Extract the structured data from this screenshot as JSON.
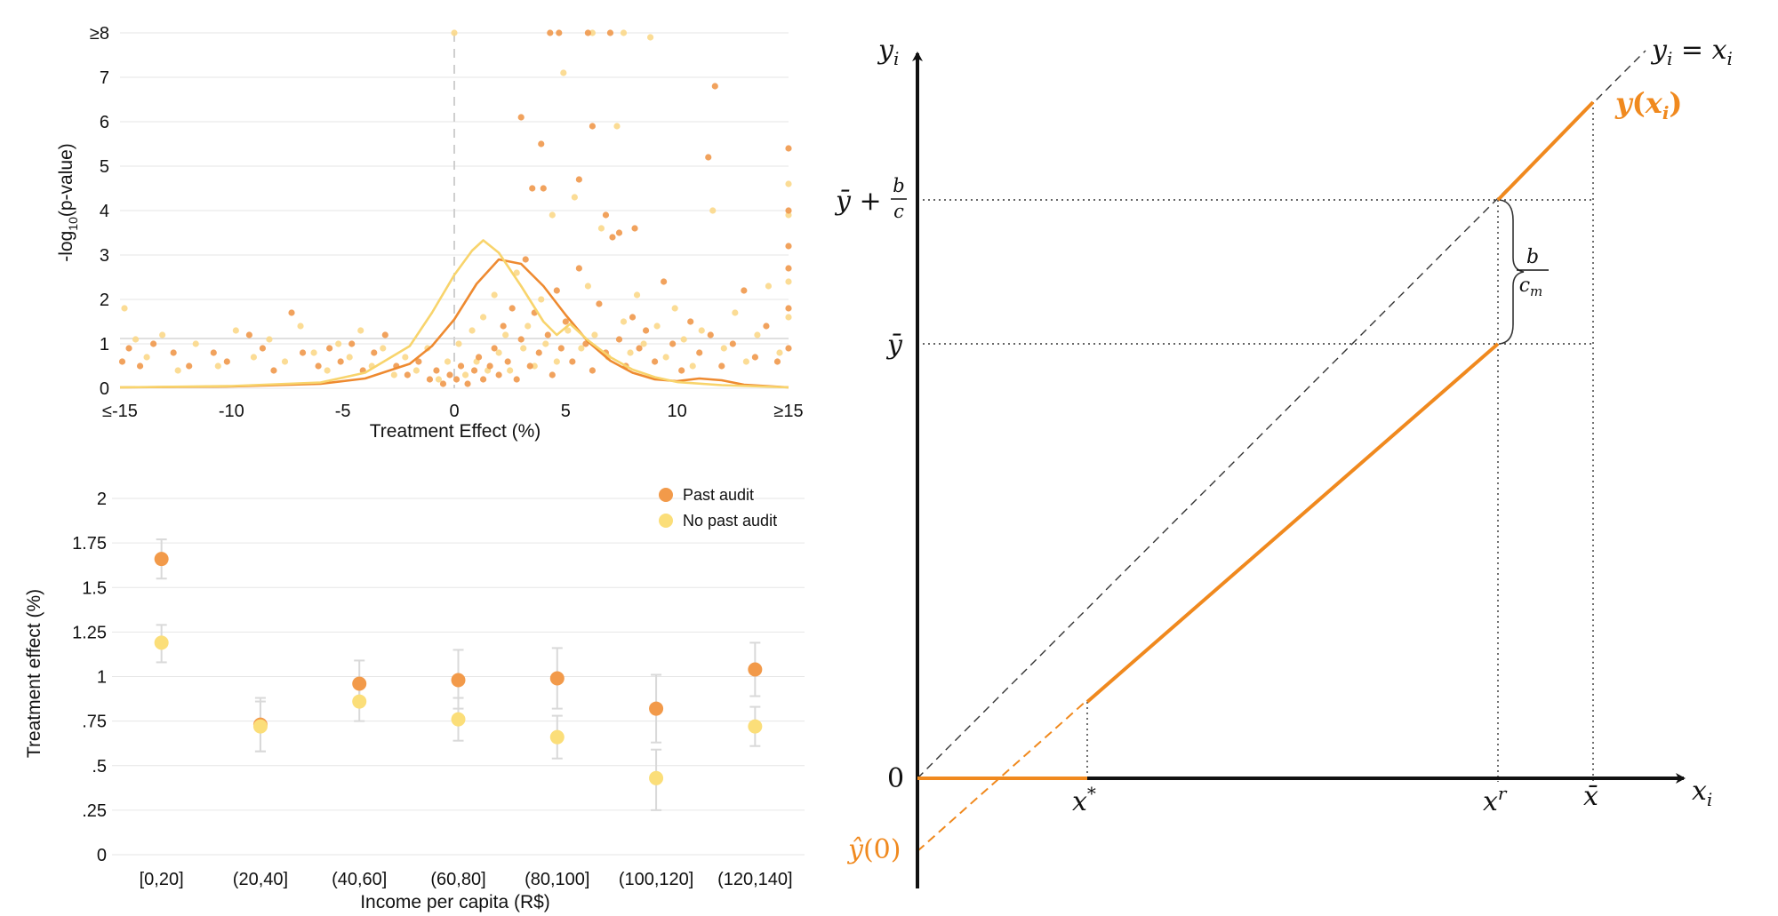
{
  "chart_data": [
    {
      "type": "scatter",
      "title": "",
      "xlabel": "Treatment Effect (%)",
      "ylabel": "-log",
      "ylabel_sub": "10",
      "ylabel_tail": "(p-value)",
      "xlim": [
        -15,
        15
      ],
      "ylim": [
        0,
        8
      ],
      "x_ticks": [
        -15,
        -10,
        -5,
        0,
        5,
        10,
        15
      ],
      "x_tick_labels": [
        "≤-15",
        "-10",
        "-5",
        "0",
        "5",
        "10",
        "≥15"
      ],
      "y_ticks": [
        0,
        1,
        2,
        3,
        4,
        5,
        6,
        7,
        8
      ],
      "y_tick_labels": [
        "0",
        "1",
        "2",
        "3",
        "4",
        "5",
        "6",
        "7",
        "≥8"
      ],
      "grid": true,
      "reference_lines": {
        "vertical_x": 0,
        "horizontal_y": 1.12
      },
      "colors": {
        "orange": "#f0984b",
        "yellow": "#fbd88a"
      },
      "series": [
        {
          "color": "orange",
          "points": [
            [
              -14.9,
              0.6
            ],
            [
              -14.6,
              0.9
            ],
            [
              -14.1,
              0.5
            ],
            [
              -13.5,
              1.0
            ],
            [
              -12.6,
              0.8
            ],
            [
              -11.9,
              0.5
            ],
            [
              -10.8,
              0.8
            ],
            [
              -10.2,
              0.6
            ],
            [
              -9.2,
              1.2
            ],
            [
              -8.6,
              0.9
            ],
            [
              -8.1,
              0.4
            ],
            [
              -7.3,
              1.7
            ],
            [
              -6.8,
              0.8
            ],
            [
              -6.1,
              0.5
            ],
            [
              -5.6,
              0.9
            ],
            [
              -5.1,
              0.6
            ],
            [
              -4.6,
              1.0
            ],
            [
              -4.1,
              0.4
            ],
            [
              -3.6,
              0.8
            ],
            [
              -3.1,
              1.2
            ],
            [
              -2.6,
              0.5
            ],
            [
              -2.1,
              0.3
            ],
            [
              -1.6,
              0.6
            ],
            [
              -1.1,
              0.2
            ],
            [
              -0.8,
              0.4
            ],
            [
              -0.5,
              0.1
            ],
            [
              -0.2,
              0.3
            ],
            [
              0.1,
              0.2
            ],
            [
              0.3,
              0.5
            ],
            [
              0.6,
              0.1
            ],
            [
              0.9,
              0.4
            ],
            [
              1.1,
              0.7
            ],
            [
              1.3,
              0.2
            ],
            [
              1.6,
              0.5
            ],
            [
              1.8,
              0.9
            ],
            [
              2.0,
              0.3
            ],
            [
              2.2,
              1.4
            ],
            [
              2.4,
              0.6
            ],
            [
              2.6,
              1.8
            ],
            [
              2.8,
              0.2
            ],
            [
              3.0,
              1.1
            ],
            [
              3.2,
              2.9
            ],
            [
              3.4,
              0.5
            ],
            [
              3.6,
              1.7
            ],
            [
              3.8,
              0.8
            ],
            [
              4.0,
              4.5
            ],
            [
              4.2,
              1.2
            ],
            [
              4.4,
              0.3
            ],
            [
              4.6,
              2.2
            ],
            [
              4.8,
              0.9
            ],
            [
              5.0,
              1.5
            ],
            [
              5.3,
              0.6
            ],
            [
              5.6,
              2.7
            ],
            [
              5.9,
              1.0
            ],
            [
              6.2,
              0.4
            ],
            [
              6.5,
              1.9
            ],
            [
              6.8,
              0.8
            ],
            [
              7.1,
              3.4
            ],
            [
              7.4,
              1.1
            ],
            [
              7.7,
              0.5
            ],
            [
              8.0,
              1.6
            ],
            [
              8.3,
              0.9
            ],
            [
              8.6,
              1.3
            ],
            [
              9.0,
              0.6
            ],
            [
              9.4,
              2.4
            ],
            [
              9.8,
              1.0
            ],
            [
              10.2,
              0.4
            ],
            [
              10.6,
              1.5
            ],
            [
              11.0,
              0.8
            ],
            [
              11.5,
              1.2
            ],
            [
              12.0,
              0.5
            ],
            [
              12.5,
              1.0
            ],
            [
              13.0,
              2.2
            ],
            [
              13.5,
              0.7
            ],
            [
              14.0,
              1.4
            ],
            [
              14.5,
              0.6
            ],
            [
              15.0,
              0.9
            ],
            [
              15.0,
              1.8
            ],
            [
              15.0,
              2.7
            ],
            [
              15.0,
              3.2
            ],
            [
              15.0,
              4.0
            ],
            [
              15.0,
              5.4
            ],
            [
              3.0,
              6.1
            ],
            [
              4.3,
              8.0
            ],
            [
              4.7,
              8.0
            ],
            [
              6.0,
              8.0
            ],
            [
              7.0,
              8.0
            ],
            [
              6.2,
              5.9
            ],
            [
              11.7,
              6.8
            ],
            [
              11.4,
              5.2
            ],
            [
              5.6,
              4.7
            ],
            [
              3.5,
              4.5
            ],
            [
              3.9,
              5.5
            ],
            [
              6.8,
              3.9
            ],
            [
              7.4,
              3.5
            ],
            [
              8.1,
              3.6
            ]
          ]
        },
        {
          "color": "yellow",
          "points": [
            [
              -14.8,
              1.8
            ],
            [
              -14.3,
              1.1
            ],
            [
              -13.8,
              0.7
            ],
            [
              -13.1,
              1.2
            ],
            [
              -12.4,
              0.4
            ],
            [
              -11.6,
              1.0
            ],
            [
              -10.6,
              0.5
            ],
            [
              -9.8,
              1.3
            ],
            [
              -9.0,
              0.7
            ],
            [
              -8.3,
              1.1
            ],
            [
              -7.6,
              0.6
            ],
            [
              -6.9,
              1.4
            ],
            [
              -6.3,
              0.8
            ],
            [
              -5.7,
              0.4
            ],
            [
              -5.2,
              1.0
            ],
            [
              -4.7,
              0.7
            ],
            [
              -4.2,
              1.3
            ],
            [
              -3.7,
              0.5
            ],
            [
              -3.2,
              0.9
            ],
            [
              -2.7,
              0.3
            ],
            [
              -2.2,
              0.7
            ],
            [
              -1.7,
              0.4
            ],
            [
              -1.2,
              0.9
            ],
            [
              -0.7,
              0.2
            ],
            [
              -0.3,
              0.6
            ],
            [
              0.0,
              8.0
            ],
            [
              0.2,
              1.0
            ],
            [
              0.5,
              0.3
            ],
            [
              0.8,
              1.3
            ],
            [
              1.0,
              0.6
            ],
            [
              1.3,
              1.6
            ],
            [
              1.5,
              0.4
            ],
            [
              1.8,
              2.1
            ],
            [
              2.0,
              0.8
            ],
            [
              2.3,
              1.2
            ],
            [
              2.5,
              0.4
            ],
            [
              2.8,
              2.6
            ],
            [
              3.1,
              0.9
            ],
            [
              3.3,
              1.4
            ],
            [
              3.6,
              0.5
            ],
            [
              3.9,
              2.0
            ],
            [
              4.1,
              1.0
            ],
            [
              4.4,
              3.9
            ],
            [
              4.6,
              0.6
            ],
            [
              4.9,
              7.1
            ],
            [
              5.1,
              1.3
            ],
            [
              5.4,
              4.3
            ],
            [
              5.7,
              0.9
            ],
            [
              6.0,
              2.3
            ],
            [
              6.3,
              1.2
            ],
            [
              6.6,
              3.6
            ],
            [
              6.9,
              0.7
            ],
            [
              7.3,
              5.9
            ],
            [
              7.6,
              1.5
            ],
            [
              7.9,
              0.8
            ],
            [
              8.2,
              2.1
            ],
            [
              8.5,
              1.0
            ],
            [
              8.8,
              7.9
            ],
            [
              9.1,
              1.4
            ],
            [
              9.5,
              0.7
            ],
            [
              9.9,
              1.8
            ],
            [
              10.3,
              1.1
            ],
            [
              10.7,
              0.5
            ],
            [
              11.1,
              1.3
            ],
            [
              11.6,
              4.0
            ],
            [
              12.1,
              0.9
            ],
            [
              12.6,
              1.7
            ],
            [
              13.1,
              0.6
            ],
            [
              13.6,
              1.2
            ],
            [
              14.1,
              2.3
            ],
            [
              14.6,
              0.8
            ],
            [
              15.0,
              1.6
            ],
            [
              15.0,
              2.4
            ],
            [
              15.0,
              3.9
            ],
            [
              15.0,
              4.6
            ],
            [
              6.2,
              8.0
            ],
            [
              7.6,
              8.0
            ]
          ]
        }
      ],
      "density_curves": [
        {
          "color": "orange",
          "points": [
            [
              -15,
              0.02
            ],
            [
              -10,
              0.04
            ],
            [
              -6,
              0.1
            ],
            [
              -4,
              0.22
            ],
            [
              -2,
              0.55
            ],
            [
              -1,
              0.95
            ],
            [
              0,
              1.55
            ],
            [
              1,
              2.35
            ],
            [
              2,
              2.9
            ],
            [
              3,
              2.8
            ],
            [
              4,
              2.3
            ],
            [
              5,
              1.65
            ],
            [
              6,
              1.05
            ],
            [
              7,
              0.62
            ],
            [
              8,
              0.35
            ],
            [
              9,
              0.2
            ],
            [
              10,
              0.16
            ],
            [
              11,
              0.22
            ],
            [
              12,
              0.18
            ],
            [
              13,
              0.08
            ],
            [
              15,
              0.02
            ]
          ]
        },
        {
          "color": "yellow",
          "points": [
            [
              -15,
              0.02
            ],
            [
              -10,
              0.05
            ],
            [
              -6,
              0.13
            ],
            [
              -4,
              0.35
            ],
            [
              -2,
              0.95
            ],
            [
              -1,
              1.7
            ],
            [
              0,
              2.55
            ],
            [
              0.8,
              3.1
            ],
            [
              1.3,
              3.33
            ],
            [
              2,
              3.05
            ],
            [
              3,
              2.3
            ],
            [
              4,
              1.5
            ],
            [
              4.6,
              1.2
            ],
            [
              5.2,
              1.45
            ],
            [
              6,
              1.08
            ],
            [
              7,
              0.7
            ],
            [
              8,
              0.42
            ],
            [
              9,
              0.25
            ],
            [
              10,
              0.14
            ],
            [
              12,
              0.07
            ],
            [
              15,
              0.02
            ]
          ]
        }
      ]
    },
    {
      "type": "scatter",
      "title": "",
      "xlabel": "Income per capita (R$)",
      "ylabel": "Treatment effect (%)",
      "ylim": [
        0,
        2
      ],
      "y_ticks": [
        0,
        0.25,
        0.5,
        0.75,
        1,
        1.25,
        1.5,
        1.75,
        2
      ],
      "y_tick_labels": [
        "0",
        ".25",
        ".5",
        ".75",
        "1",
        "1.25",
        "1.5",
        "1.75",
        "2"
      ],
      "categories": [
        "[0,20]",
        "(20,40]",
        "(40,60]",
        "(60,80]",
        "(80,100]",
        "(100,120]",
        "(120,140]"
      ],
      "grid": true,
      "legend_position": "top-right",
      "series": [
        {
          "name": "Past audit",
          "color": "#f29a4a",
          "values": [
            1.66,
            0.73,
            0.96,
            0.98,
            0.99,
            0.82,
            1.04
          ],
          "ci_low": [
            1.55,
            0.58,
            0.85,
            0.82,
            0.82,
            0.63,
            0.89
          ],
          "ci_high": [
            1.77,
            0.88,
            1.09,
            1.15,
            1.16,
            1.01,
            1.19
          ]
        },
        {
          "name": "No past audit",
          "color": "#fbde79",
          "values": [
            1.19,
            0.72,
            0.86,
            0.76,
            0.66,
            0.43,
            0.72
          ],
          "ci_low": [
            1.08,
            0.58,
            0.75,
            0.64,
            0.54,
            0.25,
            0.61
          ],
          "ci_high": [
            1.29,
            0.86,
            0.97,
            0.88,
            0.78,
            0.59,
            0.83
          ]
        }
      ]
    },
    {
      "type": "line",
      "title": "",
      "xlabel": "x_i",
      "ylabel": "y_i",
      "colors": {
        "orange": "#f0891e",
        "dark": "#111111"
      },
      "labels": {
        "identity": "y_i = x_i",
        "curve": "y(x_i)",
        "y_bar_plus": "ȳ + b/c",
        "y_bar": "ȳ",
        "zero": "0",
        "y_hat_zero": "ŷ(0)",
        "x_star": "x*",
        "x_r": "x^r",
        "x_bar": "x̄",
        "brace": "b/c_m"
      },
      "segments": [
        {
          "name": "zero-segment",
          "from": [
            0,
            0
          ],
          "to": [
            1.7,
            0
          ]
        },
        {
          "name": "middle-segment",
          "from": [
            1.7,
            0.8
          ],
          "to": [
            5.9,
            4.6
          ]
        },
        {
          "name": "upper-segment",
          "from": [
            5.9,
            6.0
          ],
          "to": [
            6.9,
            7.0
          ]
        },
        {
          "name": "extrapolation",
          "from": [
            0,
            -0.7
          ],
          "to": [
            1.7,
            0.8
          ]
        }
      ]
    }
  ],
  "math": {
    "y": "y",
    "i": "i",
    "eq": " = ",
    "x": "x",
    "b": "b",
    "c": "c",
    "m": "m",
    "plus": " + ",
    "ybar": "ȳ",
    "yhat": "ŷ",
    "zero_paren": "(0)",
    "star": "*",
    "r": "r",
    "xbar": "x̄",
    "curve_y": "y",
    "curve_open": "(",
    "curve_close": ")",
    "zero": "0"
  }
}
